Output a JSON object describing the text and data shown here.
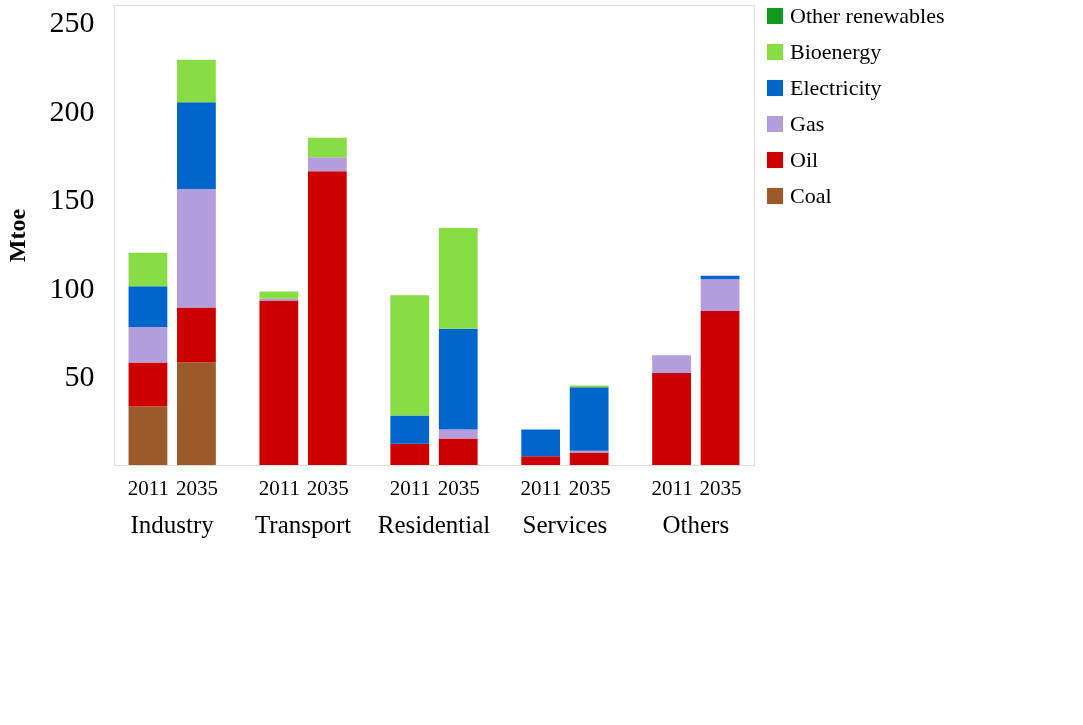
{
  "chart_data": {
    "type": "bar",
    "stacked": true,
    "ylabel": "Mtoe",
    "categories": [
      "2011",
      "2035",
      "2011",
      "2035",
      "2011",
      "2035",
      "2011",
      "2035",
      "2011",
      "2035"
    ],
    "annotations": [
      "Industry",
      "Transport",
      "Residential",
      "Services",
      "Others"
    ],
    "series": [
      {
        "name": "Coal",
        "color": "#9b5a2a",
        "values": [
          33,
          58,
          0,
          0,
          0,
          0,
          0,
          0,
          0,
          0
        ]
      },
      {
        "name": "Oil",
        "color": "#cc0000",
        "values": [
          25,
          31,
          93,
          166,
          12,
          15,
          5,
          7,
          52,
          87
        ]
      },
      {
        "name": "Gas",
        "color": "#b39ddb",
        "values": [
          20,
          67,
          1,
          8,
          0,
          5,
          0,
          1,
          10,
          18
        ]
      },
      {
        "name": "Electricity",
        "color": "#0066cc",
        "values": [
          23,
          49,
          0,
          0,
          16,
          57,
          15,
          36,
          0,
          2
        ]
      },
      {
        "name": "Bioenergy",
        "color": "#88dd44",
        "values": [
          19,
          24,
          4,
          11,
          68,
          57,
          0,
          1,
          0,
          0
        ]
      },
      {
        "name": "Other renewables",
        "color": "#119922",
        "values": [
          null,
          null,
          null,
          null,
          null,
          null,
          null,
          null,
          null,
          null
        ]
      }
    ],
    "ylim": [
      0,
      260
    ],
    "yticks": [
      50,
      100,
      150,
      200,
      250
    ],
    "grid": false,
    "legend": "top right"
  }
}
